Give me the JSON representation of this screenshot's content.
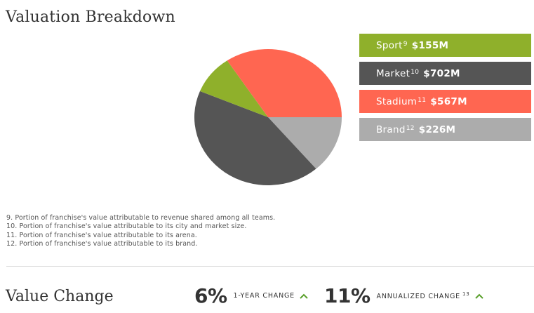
{
  "header": {
    "title": "Valuation Breakdown"
  },
  "chart_data": {
    "type": "pie",
    "unit": "$M",
    "slices": [
      {
        "name": "Sport",
        "footnote": "9",
        "value": 155,
        "label": "$155M",
        "color": "#8fb02b"
      },
      {
        "name": "Market",
        "footnote": "10",
        "value": 702,
        "label": "$702M",
        "color": "#555555"
      },
      {
        "name": "Stadium",
        "footnote": "11",
        "value": 567,
        "label": "$567M",
        "color": "#ff6651"
      },
      {
        "name": "Brand",
        "footnote": "12",
        "value": 226,
        "label": "$226M",
        "color": "#acacac"
      }
    ],
    "draw_order": [
      "Brand",
      "Market",
      "Sport",
      "Stadium"
    ]
  },
  "footnotes": [
    "9. Portion of franchise's value attributable to revenue shared among all teams.",
    "10. Portion of franchise's value attributable to its city and market size.",
    "11. Portion of franchise's value attributable to its arena.",
    "12. Portion of franchise's value attributable to its brand."
  ],
  "value_change": {
    "title": "Value Change",
    "one_year": {
      "value": "6%",
      "label": "1-YEAR CHANGE",
      "direction": "up",
      "icon": "chevron-up-icon"
    },
    "annualized": {
      "value": "11%",
      "label": "ANNUALIZED CHANGE",
      "footnote": "13",
      "direction": "up",
      "icon": "chevron-up-icon"
    }
  },
  "colors": {
    "accent_up": "#5aa02c",
    "text": "#333333",
    "divider": "#dddddd"
  }
}
